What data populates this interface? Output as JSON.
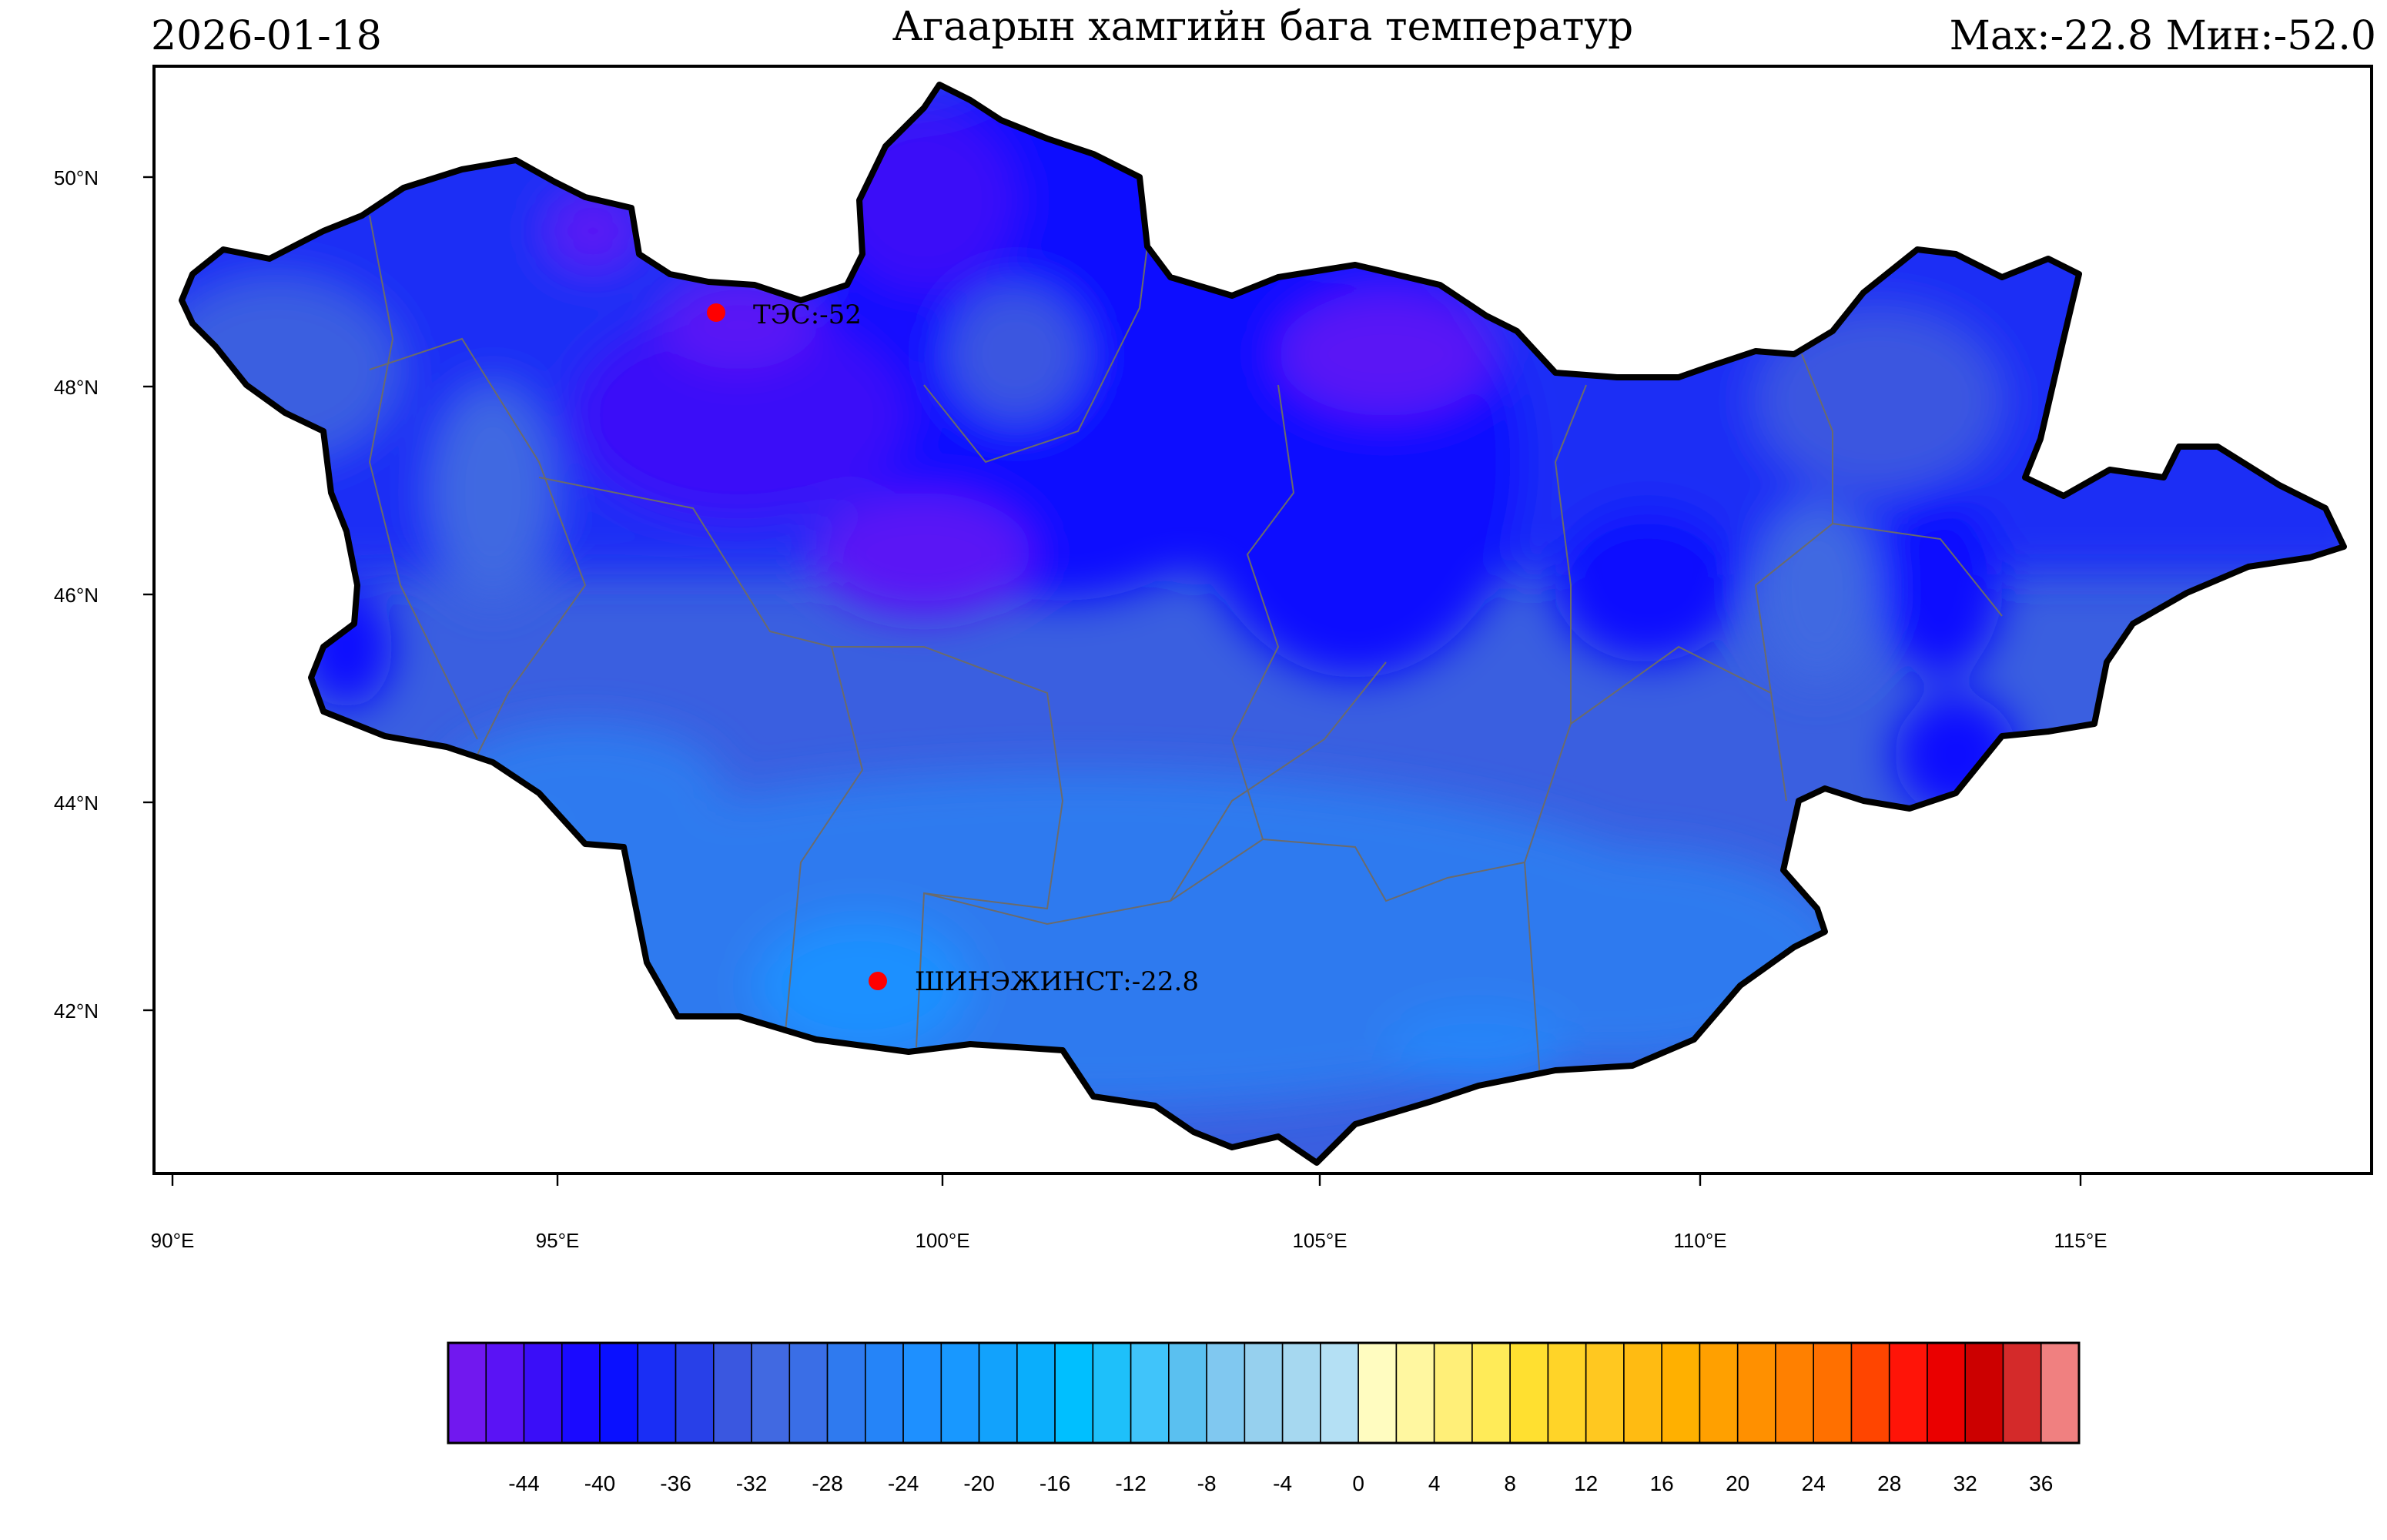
{
  "header": {
    "date": "2026-01-18",
    "title": "Агаарын хамгийн бага температур",
    "maxmin": "Max:-22.8 Мин:-52.0"
  },
  "axes": {
    "lat_labels": [
      "50°N",
      "48°N",
      "46°N",
      "44°N",
      "42°N"
    ],
    "lon_labels": [
      "90°E",
      "95°E",
      "100°E",
      "105°E",
      "110°E",
      "115°E"
    ]
  },
  "stations": [
    {
      "label": "ТЭС:-52",
      "lon": 97.1,
      "lat": 48.7,
      "color": "#ff0000"
    },
    {
      "label": "ШИНЭЖИНСТ:-22.8",
      "lon": 99.2,
      "lat": 42.3,
      "color": "#ff0000"
    }
  ],
  "colorbar": {
    "min": -48,
    "step": 2,
    "labels": [
      "-44",
      "-40",
      "-36",
      "-32",
      "-28",
      "-24",
      "-20",
      "-16",
      "-12",
      "-8",
      "-4",
      "0",
      "4",
      "8",
      "12",
      "16",
      "20",
      "24",
      "28",
      "32",
      "36"
    ],
    "colors": [
      "#7118ef",
      "#5a13f5",
      "#3a0ef8",
      "#1a0aff",
      "#0a10ff",
      "#1a2ef5",
      "#2840e8",
      "#3a57e0",
      "#4169e1",
      "#3a6ee6",
      "#2f7aef",
      "#2584f8",
      "#1e90ff",
      "#1898ff",
      "#12a2fc",
      "#0aaefc",
      "#00bfff",
      "#1ec0fa",
      "#40c4fa",
      "#5ac0f0",
      "#80c8f0",
      "#96d0ee",
      "#a6d8f0",
      "#b4e0f4",
      "#fffcc0",
      "#fff7a0",
      "#ffef78",
      "#ffeb58",
      "#ffe030",
      "#ffd428",
      "#ffc820",
      "#ffbb12",
      "#ffb000",
      "#ffa000",
      "#ff9000",
      "#ff8000",
      "#ff7000",
      "#ff4500",
      "#ff1408",
      "#ea0000",
      "#cc0000",
      "#d42a2a",
      "#f08080"
    ]
  }
}
